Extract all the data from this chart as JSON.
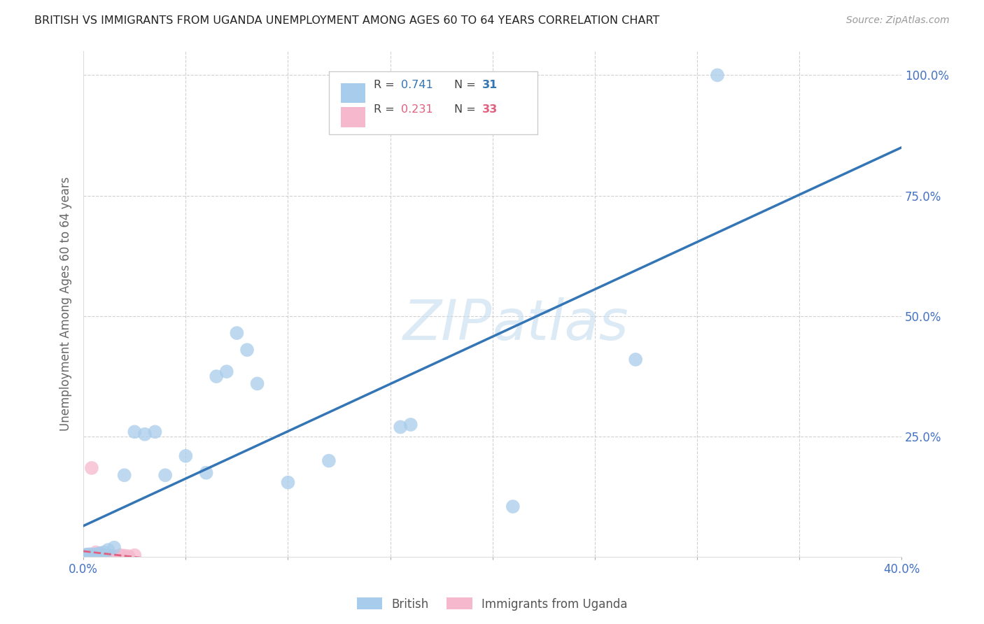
{
  "title": "BRITISH VS IMMIGRANTS FROM UGANDA UNEMPLOYMENT AMONG AGES 60 TO 64 YEARS CORRELATION CHART",
  "source": "Source: ZipAtlas.com",
  "ylabel": "Unemployment Among Ages 60 to 64 years",
  "watermark": "ZIPatlas",
  "xlim": [
    0.0,
    0.4
  ],
  "ylim": [
    0.0,
    1.05
  ],
  "british_R": 0.741,
  "british_N": 31,
  "uganda_R": 0.231,
  "uganda_N": 33,
  "british_color": "#a8cceb",
  "uganda_color": "#f5b8cd",
  "british_line_color": "#3375b5",
  "uganda_line_color": "#e06080",
  "bg_color": "#ffffff",
  "grid_color": "#cccccc",
  "title_color": "#222222",
  "tick_color": "#4472c4",
  "legend_label1": "British",
  "legend_label2": "Immigrants from Uganda",
  "british_x": [
    0.001,
    0.002,
    0.003,
    0.004,
    0.005,
    0.006,
    0.007,
    0.008,
    0.009,
    0.01,
    0.012,
    0.015,
    0.02,
    0.025,
    0.03,
    0.035,
    0.04,
    0.05,
    0.06,
    0.065,
    0.07,
    0.075,
    0.08,
    0.085,
    0.1,
    0.12,
    0.155,
    0.16,
    0.21,
    0.27,
    0.31
  ],
  "british_y": [
    0.005,
    0.005,
    0.006,
    0.004,
    0.005,
    0.006,
    0.003,
    0.008,
    0.004,
    0.01,
    0.015,
    0.02,
    0.17,
    0.26,
    0.255,
    0.26,
    0.17,
    0.21,
    0.175,
    0.375,
    0.385,
    0.465,
    0.43,
    0.36,
    0.155,
    0.2,
    0.27,
    0.275,
    0.105,
    0.41,
    1.0
  ],
  "uganda_x": [
    0.001,
    0.001,
    0.001,
    0.002,
    0.002,
    0.002,
    0.002,
    0.003,
    0.003,
    0.003,
    0.004,
    0.004,
    0.005,
    0.005,
    0.005,
    0.006,
    0.006,
    0.007,
    0.007,
    0.008,
    0.008,
    0.009,
    0.01,
    0.01,
    0.012,
    0.015,
    0.018,
    0.02,
    0.022,
    0.025,
    0.004,
    0.006,
    0.008
  ],
  "uganda_y": [
    0.001,
    0.002,
    0.003,
    0.001,
    0.002,
    0.004,
    0.005,
    0.002,
    0.003,
    0.005,
    0.002,
    0.004,
    0.001,
    0.003,
    0.005,
    0.002,
    0.004,
    0.001,
    0.003,
    0.002,
    0.005,
    0.003,
    0.002,
    0.004,
    0.003,
    0.002,
    0.004,
    0.003,
    0.002,
    0.004,
    0.185,
    0.01,
    0.008
  ]
}
